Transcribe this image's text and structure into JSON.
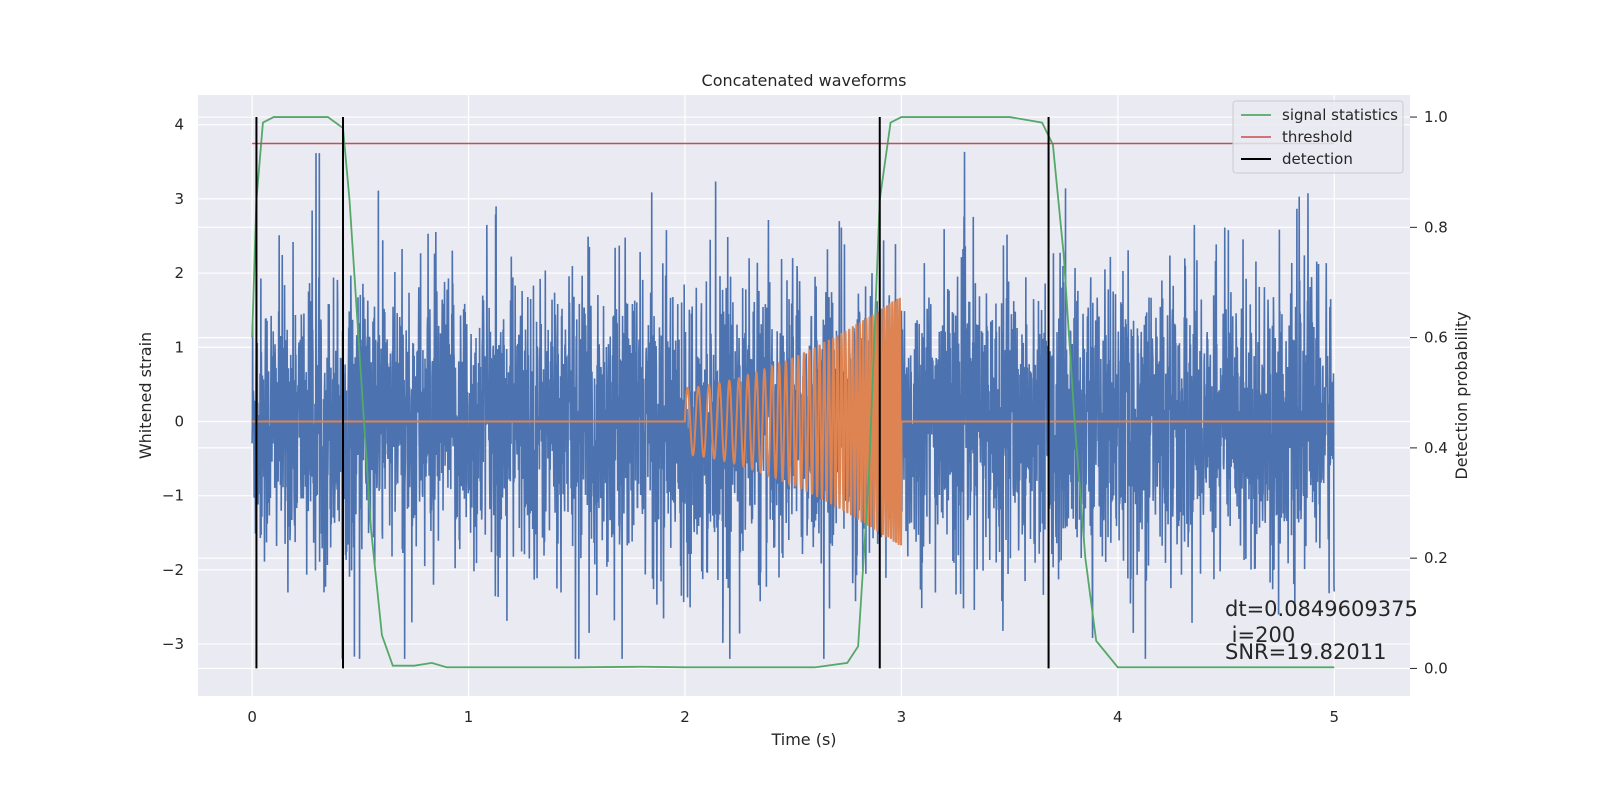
{
  "chart_data": {
    "type": "line",
    "title": "Concatenated waveforms",
    "xlabel": "Time (s)",
    "ylabel_left": "Whitened strain",
    "ylabel_right": "Detection probability",
    "xlim": [
      -0.25,
      5.35
    ],
    "ylim_left": [
      -3.7,
      4.4
    ],
    "ylim_right": [
      -0.05,
      1.04
    ],
    "x_ticks": [
      0,
      1,
      2,
      3,
      4,
      5
    ],
    "y_left_ticks": [
      -3,
      -2,
      -1,
      0,
      1,
      2,
      3,
      4
    ],
    "y_right_ticks": [
      0.0,
      0.2,
      0.4,
      0.6,
      0.8,
      1.0
    ],
    "grid": true,
    "legend_position": "top-right",
    "colors": {
      "background": "#eaeaf2",
      "grid": "#ffffff",
      "strain": "#4c72b0",
      "injected_signal": "#dd8452",
      "signal_statistics": "#55a868",
      "threshold": "#c44e52",
      "detection": "#000000"
    },
    "series": [
      {
        "name": "whitened strain (noise)",
        "axis": "left",
        "description_values": "dense noise, approx range -3.2 to 4.0, n points 0..5 s",
        "x_range": [
          0,
          5
        ],
        "amplitude_typical": 1.2
      },
      {
        "name": "injected waveform",
        "axis": "left",
        "x_range": [
          2.0,
          3.0
        ],
        "amplitude_start": 0.45,
        "amplitude_end": 1.7,
        "freq_start": 20,
        "freq_end": 90
      },
      {
        "name": "signal statistics",
        "axis": "right",
        "x": [
          0.0,
          0.02,
          0.05,
          0.1,
          0.35,
          0.42,
          0.45,
          0.5,
          0.55,
          0.6,
          0.65,
          0.75,
          0.83,
          0.9,
          1.5,
          1.8,
          2.0,
          2.6,
          2.75,
          2.8,
          2.85,
          2.9,
          2.95,
          3.0,
          3.5,
          3.65,
          3.7,
          3.75,
          3.8,
          3.85,
          3.9,
          4.0,
          5.0
        ],
        "values": [
          0.6,
          0.85,
          0.99,
          1.0,
          1.0,
          0.98,
          0.85,
          0.55,
          0.25,
          0.06,
          0.005,
          0.005,
          0.01,
          0.002,
          0.002,
          0.003,
          0.002,
          0.002,
          0.01,
          0.04,
          0.35,
          0.85,
          0.99,
          1.0,
          1.0,
          0.99,
          0.95,
          0.75,
          0.45,
          0.2,
          0.05,
          0.002,
          0.002
        ]
      },
      {
        "name": "threshold",
        "axis": "right",
        "x": [
          0,
          5
        ],
        "values": [
          0.952,
          0.952
        ]
      },
      {
        "name": "detection",
        "axis": "right",
        "vlines": [
          0.02,
          0.42,
          2.9,
          3.68
        ],
        "ymin": 0.0,
        "ymax": 1.0
      }
    ],
    "legend": [
      "signal statistics",
      "threshold",
      "detection"
    ],
    "annotations": {
      "dt": "dt=0.0849609375",
      "i": " i=200",
      "snr": "SNR=19.82011"
    }
  }
}
